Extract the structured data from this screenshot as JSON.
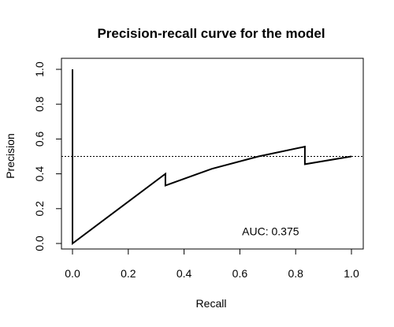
{
  "chart_data": {
    "type": "line",
    "title": "Precision-recall curve for the model",
    "xlabel": "Recall",
    "ylabel": "Precision",
    "xlim": [
      0,
      1
    ],
    "ylim": [
      0,
      1
    ],
    "xticks": [
      "0.0",
      "0.2",
      "0.4",
      "0.6",
      "0.8",
      "1.0"
    ],
    "yticks": [
      "0.0",
      "0.2",
      "0.4",
      "0.6",
      "0.8",
      "1.0"
    ],
    "grid": false,
    "series": [
      {
        "x": [
          0,
          0,
          0.333,
          0.333,
          0.5,
          0.667,
          0.833,
          0.833,
          1.0
        ],
        "y": [
          1.0,
          0,
          0.4,
          0.333,
          0.429,
          0.5,
          0.556,
          0.455,
          0.5
        ],
        "color": "#000000",
        "style": "solid"
      }
    ],
    "reference_line": {
      "y": 0.5,
      "style": "dotted",
      "color": "#000000"
    },
    "annotations": [
      {
        "text": "AUC: 0.375",
        "x": 0.71,
        "y": 0.07
      }
    ]
  }
}
